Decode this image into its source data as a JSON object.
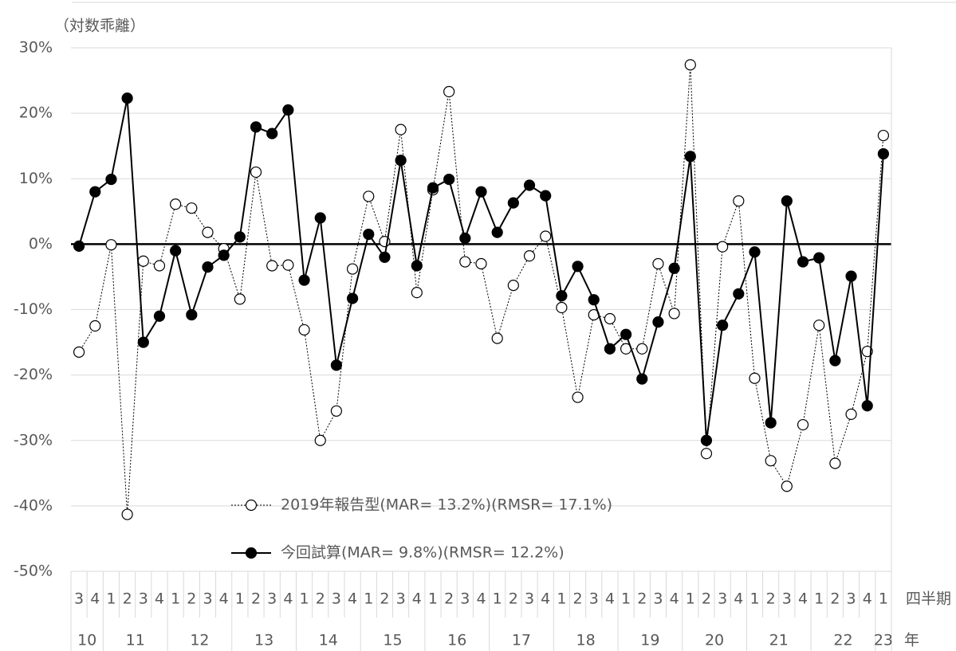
{
  "chart_data": {
    "type": "line",
    "y_label": "（対数乖離）",
    "x_label_quarter": "四半期",
    "x_label_year": "年",
    "categories": [
      "3",
      "4",
      "1",
      "2",
      "3",
      "4",
      "1",
      "2",
      "3",
      "4",
      "1",
      "2",
      "3",
      "4",
      "1",
      "2",
      "3",
      "4",
      "1",
      "2",
      "3",
      "4",
      "1",
      "2",
      "3",
      "4",
      "1",
      "2",
      "3",
      "4",
      "1",
      "2",
      "3",
      "4",
      "1",
      "2",
      "3",
      "4",
      "1",
      "2",
      "3",
      "4",
      "1",
      "2",
      "3",
      "4",
      "1",
      "2",
      "3",
      "4",
      "1"
    ],
    "year_labels": [
      "10",
      "11",
      "12",
      "13",
      "14",
      "15",
      "16",
      "17",
      "18",
      "19",
      "20",
      "21",
      "22",
      "23"
    ],
    "ylim": [
      -50,
      30
    ],
    "yticks": [
      {
        "value": -50,
        "label": "-50%"
      },
      {
        "value": -40,
        "label": "-40%"
      },
      {
        "value": -30,
        "label": "-30%"
      },
      {
        "value": -20,
        "label": "-20%"
      },
      {
        "value": -10,
        "label": "-10%"
      },
      {
        "value": 0,
        "label": "0%"
      },
      {
        "value": 10,
        "label": "10%"
      },
      {
        "value": 20,
        "label": "20%"
      },
      {
        "value": 30,
        "label": "30%"
      }
    ],
    "grid": true,
    "series": [
      {
        "name": "2019年報告型(MAR= 13.2%)(RMSR= 17.1%)",
        "color": "#000000",
        "line_style": "dotted",
        "marker": "open-circle",
        "values": [
          -16.5,
          -12.5,
          -0.1,
          -41.3,
          -2.6,
          -3.3,
          6.1,
          5.5,
          1.8,
          -0.7,
          -8.4,
          11.0,
          -3.3,
          -3.2,
          -13.1,
          -30.0,
          -25.5,
          -3.8,
          7.3,
          0.4,
          17.5,
          -7.4,
          8.3,
          23.3,
          -2.7,
          -3.0,
          -14.4,
          -6.3,
          -1.8,
          1.2,
          -9.7,
          -23.4,
          -10.8,
          -11.4,
          -16.0,
          -16.0,
          -3.0,
          -10.6,
          27.4,
          -32.0,
          -0.4,
          6.6,
          -20.5,
          -33.1,
          -37.0,
          -27.6,
          -12.4,
          -33.5,
          -26.0,
          -16.4,
          16.6
        ]
      },
      {
        "name": "今回試算(MAR= 9.8%)(RMSR= 12.2%)",
        "color": "#000000",
        "line_style": "solid",
        "marker": "filled-circle",
        "values": [
          -0.3,
          8.0,
          9.9,
          22.3,
          -15.0,
          -11.0,
          -1.0,
          -10.8,
          -3.5,
          -1.7,
          1.1,
          17.9,
          16.9,
          20.5,
          -5.5,
          4.0,
          -18.5,
          -8.3,
          1.5,
          -2.0,
          12.8,
          -3.3,
          8.6,
          9.9,
          0.9,
          8.0,
          1.8,
          6.3,
          9.0,
          7.4,
          -7.9,
          -3.4,
          -8.5,
          -16.0,
          -13.8,
          -20.6,
          -11.9,
          -3.7,
          13.4,
          -30.0,
          -12.4,
          -7.6,
          -1.2,
          -27.3,
          6.6,
          -2.7,
          -2.1,
          -17.8,
          -4.9,
          -24.7,
          13.8
        ]
      }
    ]
  }
}
